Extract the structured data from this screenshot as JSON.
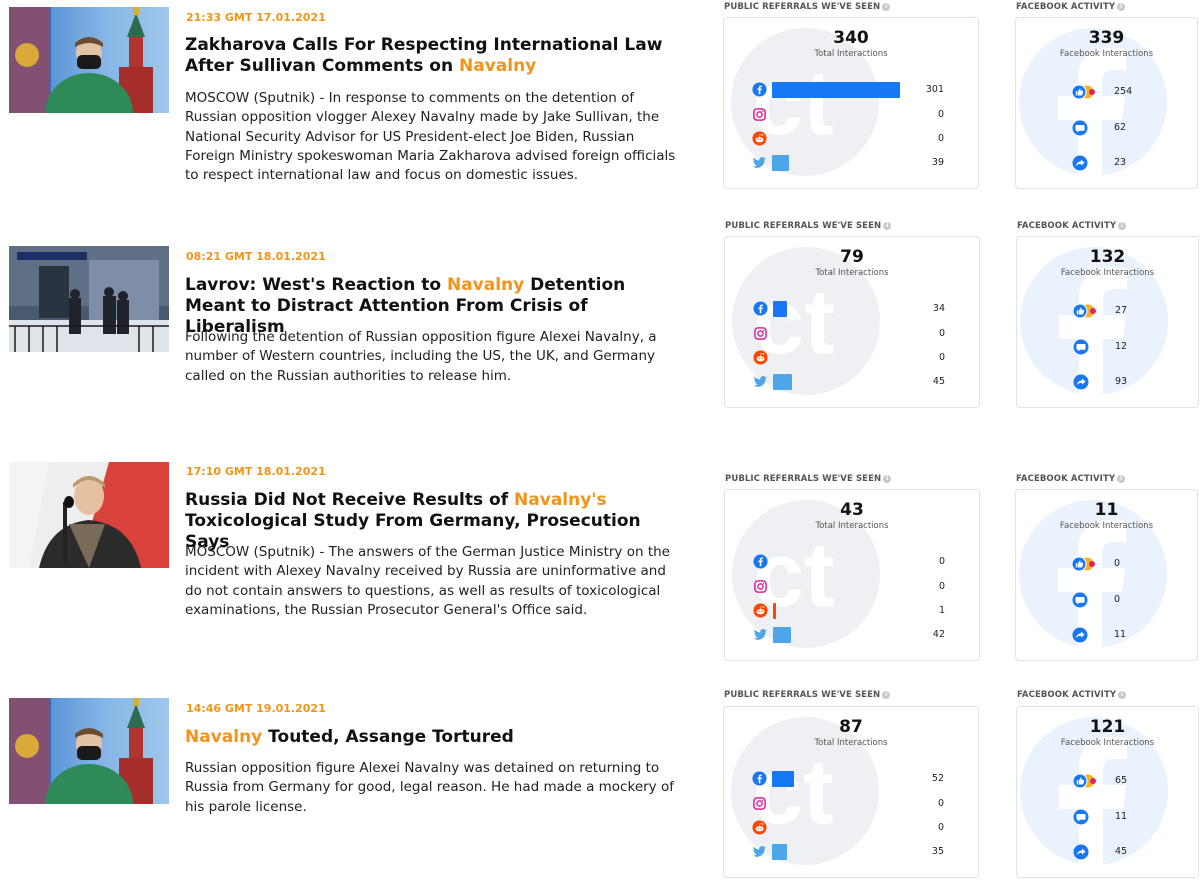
{
  "colors": {
    "accent": "#f39419",
    "facebook": "#1877f2",
    "twitter": "#4ea6ea",
    "reddit": "#ff4500",
    "instagram": "#d6249f"
  },
  "labels": {
    "referrals": "PUBLIC REFERRALS WE'VE SEEN",
    "facebook_activity": "FACEBOOK ACTIVITY",
    "total_interactions": "Total Interactions",
    "facebook_interactions": "Facebook Interactions"
  },
  "articles": [
    {
      "time": "21:33 GMT 17.01.2021",
      "title_before": "Zakharova Calls For Respecting International Law After Sullivan Comments on ",
      "title_highlight": "Navalny",
      "title_after": "",
      "summary": "MOSCOW (Sputnik) - In response to comments on the detention of Russian opposition vlogger Alexey Navalny made by Jake Sullivan, the National Security Advisor for US President-elect Joe Biden, Russian Foreign Ministry spokeswoman Maria Zakharova advised foreign officials to respect international law and focus on domestic issues.",
      "referrals": {
        "total": "340",
        "facebook": "301",
        "instagram": "0",
        "reddit": "0",
        "twitter": "39"
      },
      "fb_activity": {
        "total": "339",
        "reactions": "254",
        "comments": "62",
        "shares": "23"
      }
    },
    {
      "time": "08:21 GMT 18.01.2021",
      "title_before": "Lavrov: West's Reaction to ",
      "title_highlight": "Navalny",
      "title_after": " Detention Meant to Distract Attention From Crisis of Liberalism",
      "summary": "Following the detention of Russian opposition figure Alexei Navalny, a number of Western countries, including the US, the UK, and Germany called on the Russian authorities to release him.",
      "referrals": {
        "total": "79",
        "facebook": "34",
        "instagram": "0",
        "reddit": "0",
        "twitter": "45"
      },
      "fb_activity": {
        "total": "132",
        "reactions": "27",
        "comments": "12",
        "shares": "93"
      }
    },
    {
      "time": "17:10 GMT 18.01.2021",
      "title_before": "Russia Did Not Receive Results of ",
      "title_highlight": "Navalny's",
      "title_after": " Toxicological Study From Germany, Prosecution Says",
      "summary": "MOSCOW (Sputnik) - The answers of the German Justice Ministry on the incident with Alexey Navalny received by Russia are uninformative and do not contain answers to questions, as well as results of toxicological examinations, the Russian Prosecutor General's Office said.",
      "referrals": {
        "total": "43",
        "facebook": "0",
        "instagram": "0",
        "reddit": "1",
        "twitter": "42"
      },
      "fb_activity": {
        "total": "11",
        "reactions": "0",
        "comments": "0",
        "shares": "11"
      }
    },
    {
      "time": "14:46 GMT 19.01.2021",
      "title_before": "",
      "title_highlight": "Navalny",
      "title_after": " Touted, Assange Tortured",
      "summary": "Russian opposition figure Alexei Navalny was detained on returning to Russia from Germany for good, legal reason. He had made a mockery of his parole license.",
      "referrals": {
        "total": "87",
        "facebook": "52",
        "instagram": "0",
        "reddit": "0",
        "twitter": "35"
      },
      "fb_activity": {
        "total": "121",
        "reactions": "65",
        "comments": "11",
        "shares": "45"
      }
    }
  ]
}
